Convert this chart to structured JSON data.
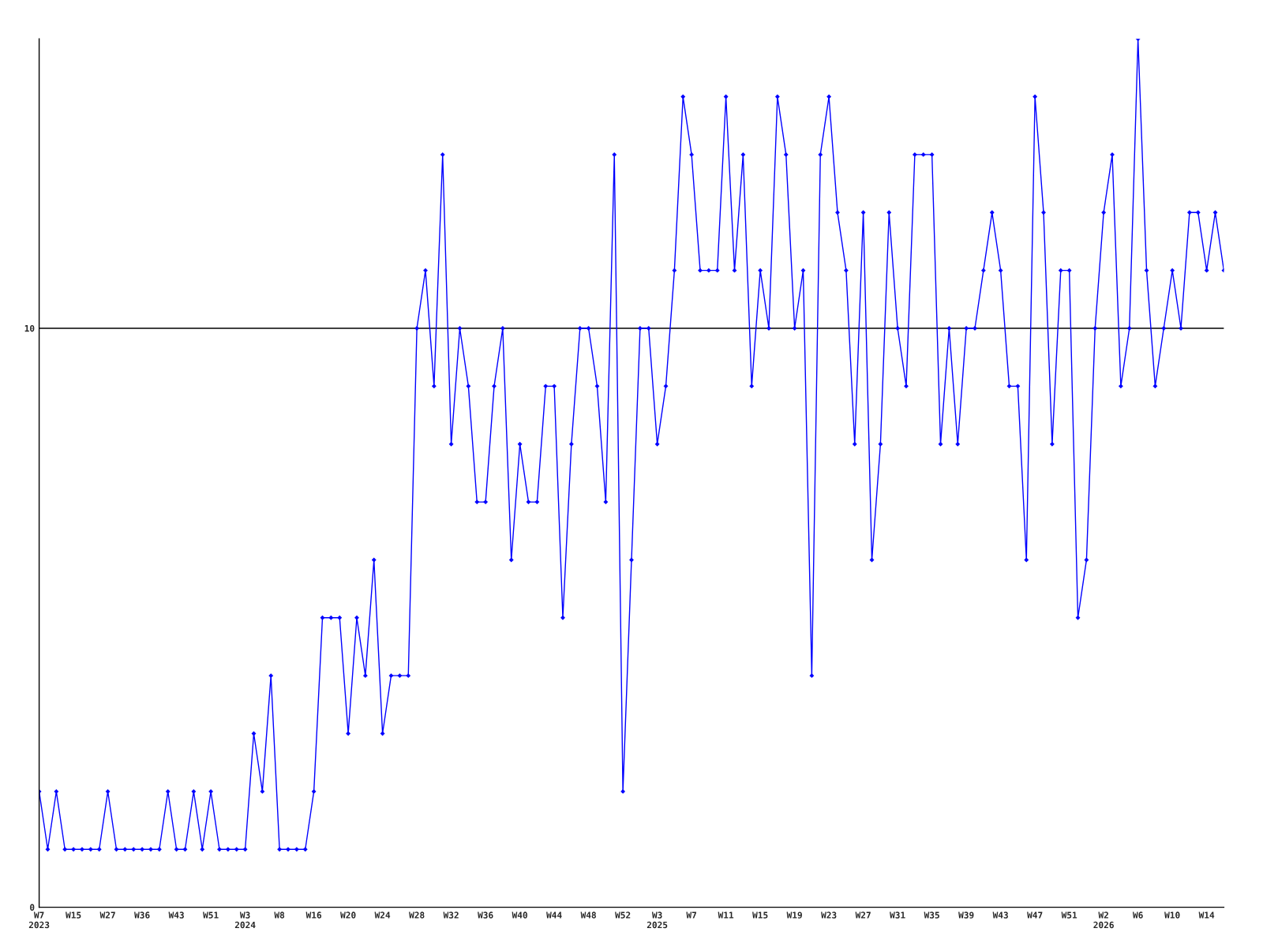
{
  "chart_data": {
    "type": "line",
    "color": "#0000ff",
    "marker": "diamond",
    "line_style": "solid",
    "grid": "y",
    "ylim": [
      0,
      15
    ],
    "yticks": [
      0,
      10
    ],
    "categories": [
      "W7\n2023",
      null,
      null,
      null,
      "W15",
      null,
      null,
      null,
      "W27",
      null,
      null,
      null,
      "W36",
      null,
      null,
      null,
      "W43",
      null,
      null,
      null,
      "W51",
      null,
      null,
      null,
      "W3\n2024",
      null,
      null,
      null,
      "W8",
      null,
      null,
      null,
      "W16",
      null,
      null,
      null,
      "W20",
      null,
      null,
      null,
      "W24",
      null,
      null,
      null,
      "W28",
      null,
      null,
      null,
      "W32",
      null,
      null,
      null,
      "W36",
      null,
      null,
      null,
      "W40",
      null,
      null,
      null,
      "W44",
      null,
      null,
      null,
      "W48",
      null,
      null,
      null,
      "W52",
      null,
      null,
      null,
      "W3\n2025",
      null,
      null,
      null,
      "W7",
      null,
      null,
      null,
      "W11",
      null,
      null,
      null,
      "W15",
      null,
      null,
      null,
      "W19",
      null,
      null,
      null,
      "W23",
      null,
      null,
      null,
      "W27",
      null,
      null,
      null,
      "W31",
      null,
      null,
      null,
      "W35",
      null,
      null,
      null,
      "W39",
      null,
      null,
      null,
      "W43",
      null,
      null,
      null,
      "W47",
      null,
      null,
      null,
      "W51",
      null,
      null,
      null,
      "W2\n2026",
      null,
      null,
      null,
      "W6",
      null,
      null,
      null,
      "W10",
      null,
      null,
      null,
      "W14",
      null,
      null
    ],
    "values": [
      2,
      1,
      2,
      1,
      1,
      1,
      1,
      1,
      2,
      1,
      1,
      1,
      1,
      1,
      1,
      2,
      1,
      1,
      2,
      1,
      2,
      1,
      1,
      1,
      1,
      3,
      2,
      4,
      1,
      1,
      1,
      1,
      2,
      5,
      5,
      5,
      3,
      5,
      4,
      6,
      3,
      4,
      4,
      4,
      10,
      11,
      9,
      13,
      8,
      10,
      9,
      7,
      7,
      9,
      10,
      6,
      8,
      7,
      7,
      9,
      9,
      5,
      8,
      10,
      10,
      9,
      7,
      13,
      2,
      6,
      10,
      10,
      8,
      9,
      11,
      14,
      13,
      11,
      11,
      11,
      14,
      11,
      13,
      9,
      11,
      10,
      14,
      13,
      10,
      11,
      4,
      13,
      14,
      12,
      11,
      8,
      12,
      6,
      8,
      12,
      10,
      9,
      13,
      13,
      13,
      8,
      10,
      8,
      10,
      10,
      11,
      12,
      11,
      9,
      9,
      6,
      14,
      12,
      8,
      11,
      11,
      5,
      6,
      10,
      12,
      13,
      9,
      10,
      15,
      11,
      9,
      10,
      11,
      10,
      12,
      12,
      11,
      12,
      11
    ]
  }
}
